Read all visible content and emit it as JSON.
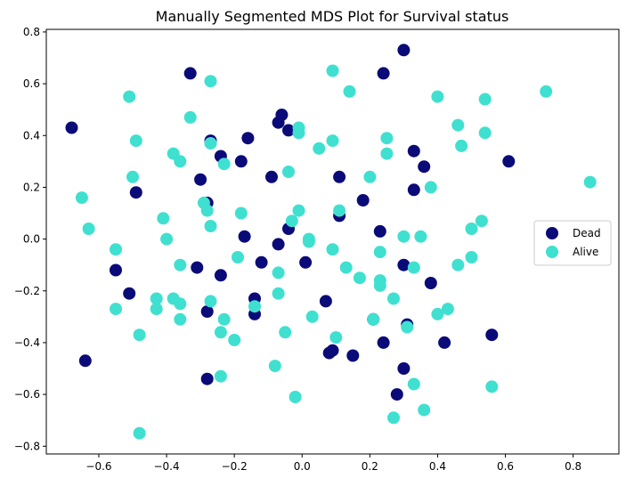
{
  "chart_data": {
    "type": "scatter",
    "title": "Manually Segmented MDS Plot for Survival status",
    "xlabel": "",
    "ylabel": "",
    "xlim": [
      -0.755,
      0.935
    ],
    "ylim": [
      -0.83,
      0.81
    ],
    "xticks": [
      "−0.6",
      "−0.4",
      "−0.2",
      "0.0",
      "0.2",
      "0.4",
      "0.6",
      "0.8"
    ],
    "xtick_values": [
      -0.6,
      -0.4,
      -0.2,
      0.0,
      0.2,
      0.4,
      0.6,
      0.8
    ],
    "yticks": [
      "−0.8",
      "−0.6",
      "−0.4",
      "−0.2",
      "0.0",
      "0.2",
      "0.4",
      "0.6",
      "0.8"
    ],
    "ytick_values": [
      -0.8,
      -0.6,
      -0.4,
      -0.2,
      0.0,
      0.2,
      0.4,
      0.6,
      0.8
    ],
    "grid": false,
    "legend_position": "center-right",
    "series": [
      {
        "name": "Dead",
        "color": "#0a0a78",
        "points": [
          [
            -0.68,
            0.43
          ],
          [
            -0.33,
            0.64
          ],
          [
            0.3,
            0.73
          ],
          [
            0.24,
            0.64
          ],
          [
            -0.06,
            0.48
          ],
          [
            -0.07,
            0.45
          ],
          [
            -0.04,
            0.42
          ],
          [
            -0.27,
            0.38
          ],
          [
            -0.16,
            0.39
          ],
          [
            -0.24,
            0.32
          ],
          [
            -0.18,
            0.3
          ],
          [
            -0.09,
            0.24
          ],
          [
            -0.3,
            0.23
          ],
          [
            0.33,
            0.34
          ],
          [
            0.36,
            0.28
          ],
          [
            0.61,
            0.3
          ],
          [
            0.11,
            0.24
          ],
          [
            0.18,
            0.15
          ],
          [
            0.33,
            0.19
          ],
          [
            -0.49,
            0.18
          ],
          [
            -0.28,
            0.14
          ],
          [
            0.11,
            0.09
          ],
          [
            -0.17,
            0.01
          ],
          [
            -0.04,
            0.04
          ],
          [
            -0.07,
            -0.02
          ],
          [
            0.23,
            0.03
          ],
          [
            -0.31,
            -0.11
          ],
          [
            -0.12,
            -0.09
          ],
          [
            0.01,
            -0.09
          ],
          [
            -0.55,
            -0.12
          ],
          [
            -0.24,
            -0.14
          ],
          [
            0.3,
            -0.1
          ],
          [
            -0.51,
            -0.21
          ],
          [
            -0.14,
            -0.23
          ],
          [
            -0.14,
            -0.29
          ],
          [
            0.07,
            -0.24
          ],
          [
            0.38,
            -0.17
          ],
          [
            -0.28,
            -0.28
          ],
          [
            0.21,
            -0.31
          ],
          [
            0.31,
            -0.33
          ],
          [
            0.24,
            -0.4
          ],
          [
            0.42,
            -0.4
          ],
          [
            0.56,
            -0.37
          ],
          [
            0.08,
            -0.44
          ],
          [
            0.09,
            -0.43
          ],
          [
            0.15,
            -0.45
          ],
          [
            -0.64,
            -0.47
          ],
          [
            0.3,
            -0.5
          ],
          [
            -0.28,
            -0.54
          ],
          [
            0.28,
            -0.6
          ]
        ]
      },
      {
        "name": "Alive",
        "color": "#3fe0d0",
        "points": [
          [
            -0.51,
            0.55
          ],
          [
            -0.27,
            0.61
          ],
          [
            0.09,
            0.65
          ],
          [
            0.14,
            0.57
          ],
          [
            0.4,
            0.55
          ],
          [
            0.54,
            0.54
          ],
          [
            0.72,
            0.57
          ],
          [
            -0.33,
            0.47
          ],
          [
            -0.49,
            0.38
          ],
          [
            -0.27,
            0.37
          ],
          [
            -0.01,
            0.43
          ],
          [
            -0.01,
            0.41
          ],
          [
            0.09,
            0.38
          ],
          [
            0.05,
            0.35
          ],
          [
            0.25,
            0.39
          ],
          [
            0.46,
            0.44
          ],
          [
            0.54,
            0.41
          ],
          [
            0.47,
            0.36
          ],
          [
            -0.38,
            0.33
          ],
          [
            -0.36,
            0.3
          ],
          [
            -0.23,
            0.29
          ],
          [
            0.25,
            0.33
          ],
          [
            -0.04,
            0.26
          ],
          [
            -0.5,
            0.24
          ],
          [
            0.2,
            0.24
          ],
          [
            0.38,
            0.2
          ],
          [
            0.85,
            0.22
          ],
          [
            -0.65,
            0.16
          ],
          [
            -0.29,
            0.14
          ],
          [
            -0.28,
            0.11
          ],
          [
            -0.18,
            0.1
          ],
          [
            -0.41,
            0.08
          ],
          [
            -0.01,
            0.11
          ],
          [
            0.11,
            0.11
          ],
          [
            -0.27,
            0.05
          ],
          [
            -0.03,
            0.07
          ],
          [
            -0.63,
            0.04
          ],
          [
            -0.4,
            0.0
          ],
          [
            0.02,
            -0.01
          ],
          [
            0.02,
            0.0
          ],
          [
            0.3,
            0.01
          ],
          [
            0.35,
            0.01
          ],
          [
            0.5,
            0.04
          ],
          [
            0.53,
            0.07
          ],
          [
            -0.55,
            -0.04
          ],
          [
            0.09,
            -0.04
          ],
          [
            0.23,
            -0.05
          ],
          [
            -0.19,
            -0.07
          ],
          [
            -0.36,
            -0.1
          ],
          [
            0.13,
            -0.11
          ],
          [
            0.46,
            -0.1
          ],
          [
            0.33,
            -0.11
          ],
          [
            0.5,
            -0.07
          ],
          [
            -0.07,
            -0.13
          ],
          [
            0.17,
            -0.15
          ],
          [
            0.23,
            -0.16
          ],
          [
            0.23,
            -0.18
          ],
          [
            -0.07,
            -0.21
          ],
          [
            -0.43,
            -0.23
          ],
          [
            -0.38,
            -0.23
          ],
          [
            -0.27,
            -0.24
          ],
          [
            -0.36,
            -0.25
          ],
          [
            0.27,
            -0.23
          ],
          [
            -0.55,
            -0.27
          ],
          [
            -0.43,
            -0.27
          ],
          [
            -0.14,
            -0.26
          ],
          [
            0.43,
            -0.27
          ],
          [
            0.4,
            -0.29
          ],
          [
            -0.36,
            -0.31
          ],
          [
            -0.23,
            -0.31
          ],
          [
            0.03,
            -0.3
          ],
          [
            0.21,
            -0.31
          ],
          [
            0.31,
            -0.34
          ],
          [
            -0.24,
            -0.36
          ],
          [
            -0.05,
            -0.36
          ],
          [
            -0.48,
            -0.37
          ],
          [
            -0.2,
            -0.39
          ],
          [
            0.1,
            -0.38
          ],
          [
            -0.08,
            -0.49
          ],
          [
            -0.24,
            -0.53
          ],
          [
            0.33,
            -0.56
          ],
          [
            0.56,
            -0.57
          ],
          [
            -0.02,
            -0.61
          ],
          [
            0.36,
            -0.66
          ],
          [
            0.27,
            -0.69
          ],
          [
            -0.48,
            -0.75
          ]
        ]
      }
    ]
  }
}
